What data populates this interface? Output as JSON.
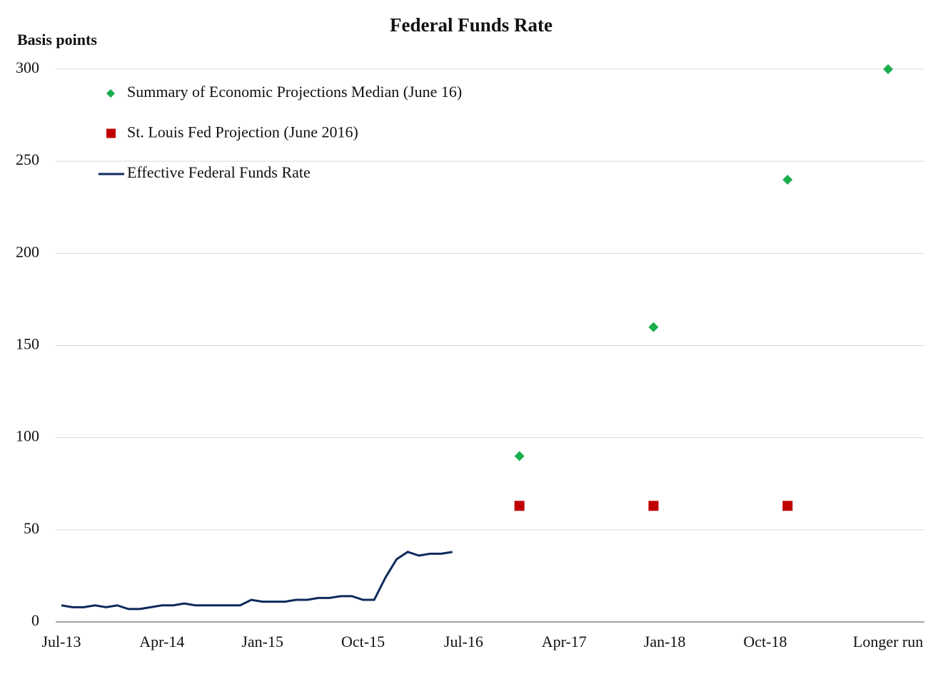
{
  "chart_data": {
    "type": "line",
    "title": "Federal Funds Rate",
    "y_label": "Basis points",
    "categories": [
      "Jul-13",
      null,
      null,
      null,
      null,
      null,
      null,
      null,
      null,
      "Apr-14",
      null,
      null,
      null,
      null,
      null,
      null,
      null,
      null,
      "Jan-15",
      null,
      null,
      null,
      null,
      null,
      null,
      null,
      null,
      "Oct-15",
      null,
      null,
      null,
      null,
      null,
      null,
      null,
      null,
      "Jul-16",
      null,
      null,
      null,
      null,
      null,
      null,
      null,
      null,
      "Apr-17",
      null,
      null,
      null,
      null,
      null,
      null,
      null,
      null,
      "Jan-18",
      null,
      null,
      null,
      null,
      null,
      null,
      null,
      null,
      "Oct-18",
      null,
      null,
      null,
      null,
      null,
      null,
      null,
      null,
      null,
      null,
      "Longer run"
    ],
    "series": [
      {
        "name": "Summary of Economic Projections Median (June 16)",
        "color": "#1aad4e",
        "marker": "diamond",
        "values": [
          null,
          null,
          null,
          null,
          null,
          null,
          null,
          null,
          null,
          null,
          null,
          null,
          null,
          null,
          null,
          null,
          null,
          null,
          null,
          null,
          null,
          null,
          null,
          null,
          null,
          null,
          null,
          null,
          null,
          null,
          null,
          null,
          null,
          null,
          null,
          null,
          null,
          null,
          null,
          null,
          null,
          90,
          null,
          null,
          null,
          null,
          null,
          null,
          null,
          null,
          null,
          null,
          null,
          160,
          null,
          null,
          null,
          null,
          null,
          null,
          null,
          null,
          null,
          null,
          null,
          240,
          null,
          null,
          null,
          null,
          null,
          null,
          null,
          null,
          300
        ]
      },
      {
        "name": "St. Louis Fed Projection (June 2016)",
        "color": "#c00000",
        "marker": "square",
        "values": [
          null,
          null,
          null,
          null,
          null,
          null,
          null,
          null,
          null,
          null,
          null,
          null,
          null,
          null,
          null,
          null,
          null,
          null,
          null,
          null,
          null,
          null,
          null,
          null,
          null,
          null,
          null,
          null,
          null,
          null,
          null,
          null,
          null,
          null,
          null,
          null,
          null,
          null,
          null,
          null,
          null,
          63,
          null,
          null,
          null,
          null,
          null,
          null,
          null,
          null,
          null,
          null,
          null,
          63,
          null,
          null,
          null,
          null,
          null,
          null,
          null,
          null,
          null,
          null,
          null,
          63,
          null,
          null,
          null,
          null,
          null,
          null,
          null,
          null,
          null
        ]
      },
      {
        "name": "Effective Federal Funds Rate",
        "color": "#0d2a5c",
        "marker": "none",
        "values": [
          9,
          8,
          8,
          9,
          8,
          9,
          7,
          7,
          8,
          9,
          9,
          10,
          9,
          9,
          9,
          9,
          9,
          12,
          11,
          11,
          11,
          12,
          12,
          13,
          13,
          14,
          14,
          12,
          12,
          24,
          34,
          38,
          36,
          37,
          37,
          38,
          null,
          null,
          null,
          null,
          null,
          null,
          null,
          null,
          null,
          null,
          null,
          null,
          null,
          null,
          null,
          null,
          null,
          null,
          null,
          null,
          null,
          null,
          null,
          null,
          null,
          null,
          null,
          null,
          null,
          null,
          null,
          null,
          null,
          null,
          null,
          null,
          null,
          null,
          null
        ]
      }
    ],
    "ylim": [
      0,
      300
    ],
    "yticks": [
      0,
      50,
      100,
      150,
      200,
      250,
      300
    ],
    "grid": true,
    "legend": "upper left"
  }
}
